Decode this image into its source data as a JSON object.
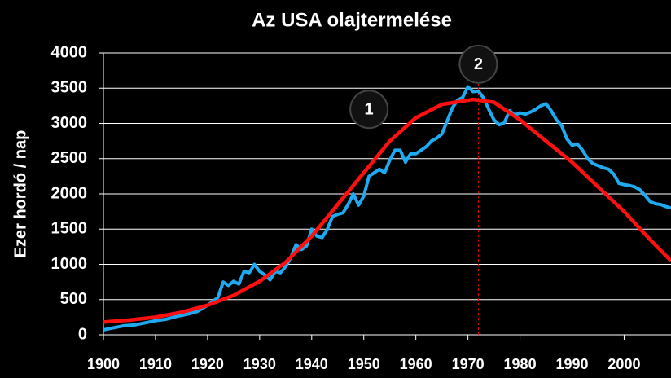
{
  "chart_data": {
    "type": "line",
    "title": "Az USA olajtermelése",
    "ylabel": "Ezer hordó / nap",
    "xlim": [
      1900,
      2009
    ],
    "ylim": [
      0,
      4000
    ],
    "xticks": [
      1900,
      1910,
      1920,
      1930,
      1940,
      1950,
      1960,
      1970,
      1980,
      1990,
      2000
    ],
    "yticks": [
      0,
      500,
      1000,
      1500,
      2000,
      2500,
      3000,
      3500,
      4000
    ],
    "grid": true,
    "series": [
      {
        "color": "#1eaaf0",
        "x": [
          1900,
          1902,
          1904,
          1906,
          1908,
          1910,
          1912,
          1914,
          1916,
          1918,
          1920,
          1922,
          1923,
          1924,
          1925,
          1926,
          1927,
          1928,
          1929,
          1930,
          1931,
          1932,
          1933,
          1934,
          1935,
          1936,
          1937,
          1938,
          1939,
          1940,
          1941,
          1942,
          1943,
          1944,
          1945,
          1946,
          1947,
          1948,
          1949,
          1950,
          1951,
          1952,
          1953,
          1954,
          1955,
          1956,
          1957,
          1958,
          1959,
          1960,
          1961,
          1962,
          1963,
          1964,
          1965,
          1966,
          1967,
          1968,
          1969,
          1970,
          1971,
          1972,
          1973,
          1974,
          1975,
          1976,
          1977,
          1978,
          1979,
          1980,
          1981,
          1982,
          1983,
          1984,
          1985,
          1986,
          1987,
          1988,
          1989,
          1990,
          1991,
          1992,
          1993,
          1994,
          1995,
          1996,
          1997,
          1998,
          1999,
          2000,
          2001,
          2002,
          2003,
          2004,
          2005,
          2006,
          2007,
          2008,
          2009
        ],
        "values": [
          70,
          100,
          130,
          140,
          170,
          200,
          220,
          260,
          290,
          330,
          420,
          530,
          750,
          700,
          760,
          720,
          900,
          880,
          1000,
          900,
          850,
          780,
          900,
          880,
          970,
          1100,
          1280,
          1210,
          1260,
          1500,
          1400,
          1380,
          1500,
          1680,
          1710,
          1730,
          1850,
          2000,
          1840,
          1970,
          2250,
          2300,
          2350,
          2300,
          2480,
          2620,
          2620,
          2450,
          2570,
          2570,
          2620,
          2670,
          2750,
          2790,
          2850,
          3030,
          3220,
          3330,
          3370,
          3520,
          3450,
          3460,
          3360,
          3200,
          3050,
          2980,
          3010,
          3180,
          3120,
          3150,
          3130,
          3160,
          3200,
          3250,
          3280,
          3180,
          3050,
          2970,
          2780,
          2690,
          2710,
          2620,
          2500,
          2430,
          2400,
          2370,
          2350,
          2280,
          2150,
          2130,
          2120,
          2100,
          2060,
          1980,
          1890,
          1860,
          1850,
          1820,
          1800
        ]
      },
      {
        "color": "#ff1010",
        "x": [
          1900,
          1905,
          1910,
          1915,
          1920,
          1925,
          1930,
          1935,
          1940,
          1945,
          1950,
          1955,
          1960,
          1965,
          1971,
          1975,
          1980,
          1985,
          1990,
          1995,
          2000,
          2005,
          2009
        ],
        "values": [
          180,
          210,
          250,
          320,
          420,
          560,
          760,
          1030,
          1400,
          1850,
          2300,
          2750,
          3080,
          3270,
          3340,
          3300,
          3050,
          2750,
          2450,
          2100,
          1750,
          1350,
          1050
        ]
      }
    ],
    "vline_x": 1972,
    "annotations": [
      {
        "text": "1",
        "x": 1951,
        "y": 3200
      },
      {
        "text": "2",
        "x": 1972,
        "y": 3840
      }
    ]
  }
}
